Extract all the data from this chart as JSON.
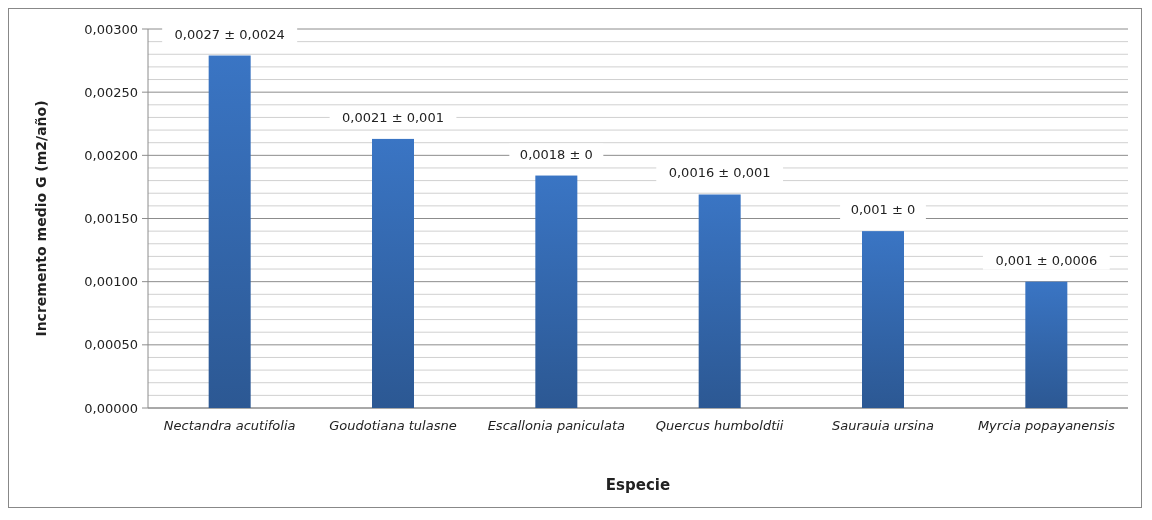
{
  "chart_data": {
    "type": "bar",
    "xlabel": "Especie",
    "ylabel": "Incremento medio G (m2/año)",
    "categories": [
      "Nectandra acutifolia",
      "Goudotiana tulasne",
      "Escallonia paniculata",
      "Quercus humboldtii",
      "Saurauia ursina",
      "Myrcia popayanensis"
    ],
    "values": [
      0.00279,
      0.00213,
      0.00184,
      0.00169,
      0.0014,
      0.001
    ],
    "annotations": [
      {
        "text": "0,0027 ± 0,0024",
        "x": "Nectandra acutifolia",
        "y": 0.00279
      },
      {
        "text": "0,0021 ± 0,001",
        "x": "Goudotiana tulasne",
        "y": 0.00213
      },
      {
        "text": "0,0018 ± 0",
        "x": "Escallonia paniculata",
        "y": 0.00184
      },
      {
        "text": "0,0016 ± 0,001",
        "x": "Quercus humboldtii",
        "y": 0.00169
      },
      {
        "text": "0,001 ± 0",
        "x": "Saurauia ursina",
        "y": 0.0014
      },
      {
        "text": "0,001 ± 0,0006",
        "x": "Myrcia popayanensis",
        "y": 0.001
      }
    ],
    "color": "#3a75c4",
    "ylim": [
      0,
      0.003
    ],
    "yticks": [
      {
        "value": 0,
        "label": "0,00000"
      },
      {
        "value": 0.0001,
        "label": null
      },
      {
        "value": 0.0002,
        "label": null
      },
      {
        "value": 0.0003,
        "label": null
      },
      {
        "value": 0.0004,
        "label": null
      },
      {
        "value": 0.0005,
        "label": "0,00050"
      },
      {
        "value": 0.0006,
        "label": null
      },
      {
        "value": 0.0007,
        "label": null
      },
      {
        "value": 0.0008,
        "label": null
      },
      {
        "value": 0.0009,
        "label": null
      },
      {
        "value": 0.001,
        "label": "0,00100"
      },
      {
        "value": 0.0011,
        "label": null
      },
      {
        "value": 0.0012,
        "label": null
      },
      {
        "value": 0.0013,
        "label": null
      },
      {
        "value": 0.0014,
        "label": null
      },
      {
        "value": 0.0015,
        "label": "0,00150"
      },
      {
        "value": 0.0016,
        "label": null
      },
      {
        "value": 0.0017,
        "label": null
      },
      {
        "value": 0.0018,
        "label": null
      },
      {
        "value": 0.0019,
        "label": null
      },
      {
        "value": 0.002,
        "label": "0,00200"
      },
      {
        "value": 0.0021,
        "label": null
      },
      {
        "value": 0.0022,
        "label": null
      },
      {
        "value": 0.0023,
        "label": null
      },
      {
        "value": 0.0024,
        "label": null
      },
      {
        "value": 0.0025,
        "label": "0,00250"
      },
      {
        "value": 0.0026,
        "label": null
      },
      {
        "value": 0.0027,
        "label": null
      },
      {
        "value": 0.0028,
        "label": null
      },
      {
        "value": 0.0029,
        "label": null
      },
      {
        "value": 0.003,
        "label": "0,00300"
      }
    ],
    "grid": true
  }
}
